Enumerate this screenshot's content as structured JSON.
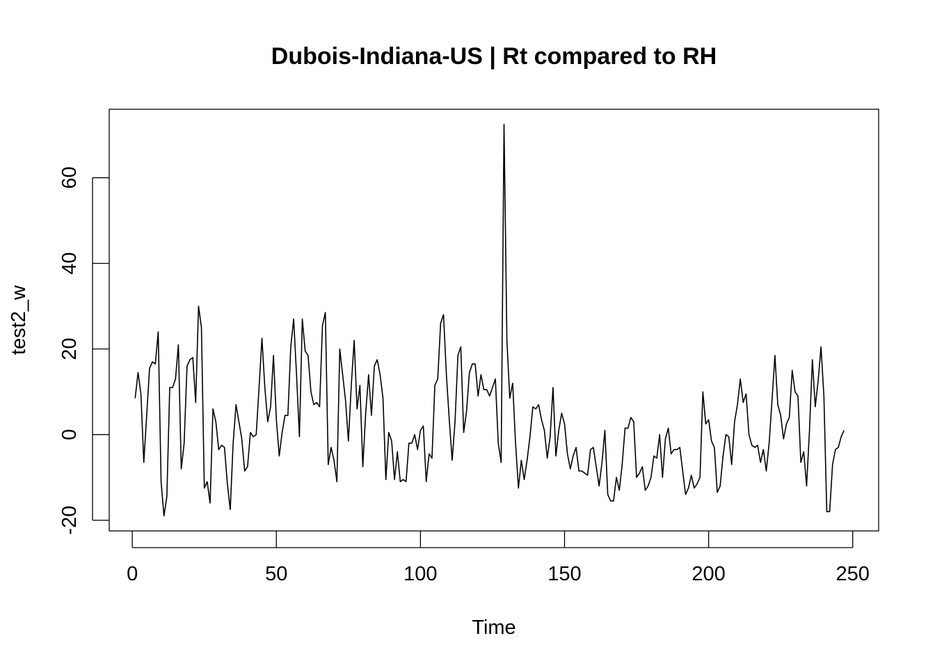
{
  "chart_data": {
    "type": "line",
    "title": "Dubois-Indiana-US | Rt compared to RH",
    "xlabel": "Time",
    "ylabel": "test2_w",
    "xlim": [
      -8,
      259
    ],
    "ylim": [
      -22.5,
      76
    ],
    "xticks": [
      0,
      50,
      100,
      150,
      200,
      250
    ],
    "yticks": [
      -20,
      0,
      20,
      40,
      60
    ],
    "grid": false,
    "legend": "none",
    "line_color": "#000000",
    "x_start": 1,
    "x_step": 1,
    "values": [
      8.5,
      14.5,
      9.5,
      -6.5,
      4.5,
      15.5,
      17,
      16.5,
      24,
      -11,
      -19,
      -14.5,
      11,
      11,
      13,
      21,
      -8,
      -2,
      16,
      17.5,
      18,
      7.5,
      30,
      25,
      -12.5,
      -11,
      -16,
      6,
      3,
      -3.5,
      -2.5,
      -3,
      -11.5,
      -17.5,
      -2,
      7,
      3,
      -1,
      -8.5,
      -7.5,
      0.5,
      -0.5,
      0,
      11,
      22.5,
      11,
      3,
      6.5,
      18.5,
      3.5,
      -5,
      0.5,
      4.5,
      4.5,
      20.5,
      27,
      14,
      -0.5,
      27,
      19.5,
      18.5,
      10,
      7,
      7.5,
      6.5,
      25.5,
      28.5,
      -7,
      -3,
      -6,
      -11,
      20,
      14,
      8,
      -1.5,
      11.5,
      22,
      6,
      11.5,
      -7.5,
      5,
      14,
      4.5,
      16,
      17.5,
      14,
      8.5,
      -10.5,
      0.5,
      -1.5,
      -10.5,
      -4,
      -11,
      -10.5,
      -11,
      -2,
      -2,
      0,
      -3.5,
      1,
      2,
      -11,
      -4.5,
      -5.5,
      11.5,
      13,
      26,
      28,
      14,
      3.5,
      -6,
      3,
      18.5,
      20.5,
      0.5,
      5.5,
      14.5,
      16.5,
      16.5,
      9,
      14,
      10.5,
      10.5,
      9,
      11,
      13,
      -2,
      -6.5,
      72.5,
      22,
      8.5,
      12,
      -2,
      -12.5,
      -6,
      -10.5,
      -6,
      -0.5,
      6.5,
      6,
      7,
      3.5,
      1,
      -5.5,
      -0.5,
      11,
      -5,
      1,
      5,
      2.5,
      -4.5,
      -8,
      -5,
      -3,
      -8.5,
      -8.5,
      -9,
      -9.5,
      -3.5,
      -3,
      -7.5,
      -12,
      -6.5,
      1,
      -14,
      -15.5,
      -15.5,
      -10,
      -13,
      -7,
      1.5,
      1.5,
      4,
      3,
      -10,
      -9,
      -7.5,
      -13,
      -12,
      -10,
      -5,
      -5.5,
      0,
      -10,
      -1,
      1.5,
      -4.5,
      -3.5,
      -3.5,
      -3,
      -8.5,
      -14,
      -12.5,
      -9.5,
      -12.5,
      -11.5,
      -10,
      10,
      2.5,
      3.5,
      -1.5,
      -3,
      -13.5,
      -12,
      -5,
      0,
      -0.5,
      -7,
      3,
      7,
      13,
      7.5,
      9.5,
      0,
      -2.5,
      -3,
      -2.5,
      -6.5,
      -3.5,
      -8.5,
      -2,
      8,
      18.5,
      7,
      4.5,
      -1,
      2.5,
      4,
      15,
      10,
      9,
      -6.5,
      -4,
      -12,
      1,
      17.5,
      6.5,
      12.5,
      20.5,
      9,
      -18,
      -18,
      -7,
      -3.5,
      -3,
      -0.5,
      1
    ]
  }
}
